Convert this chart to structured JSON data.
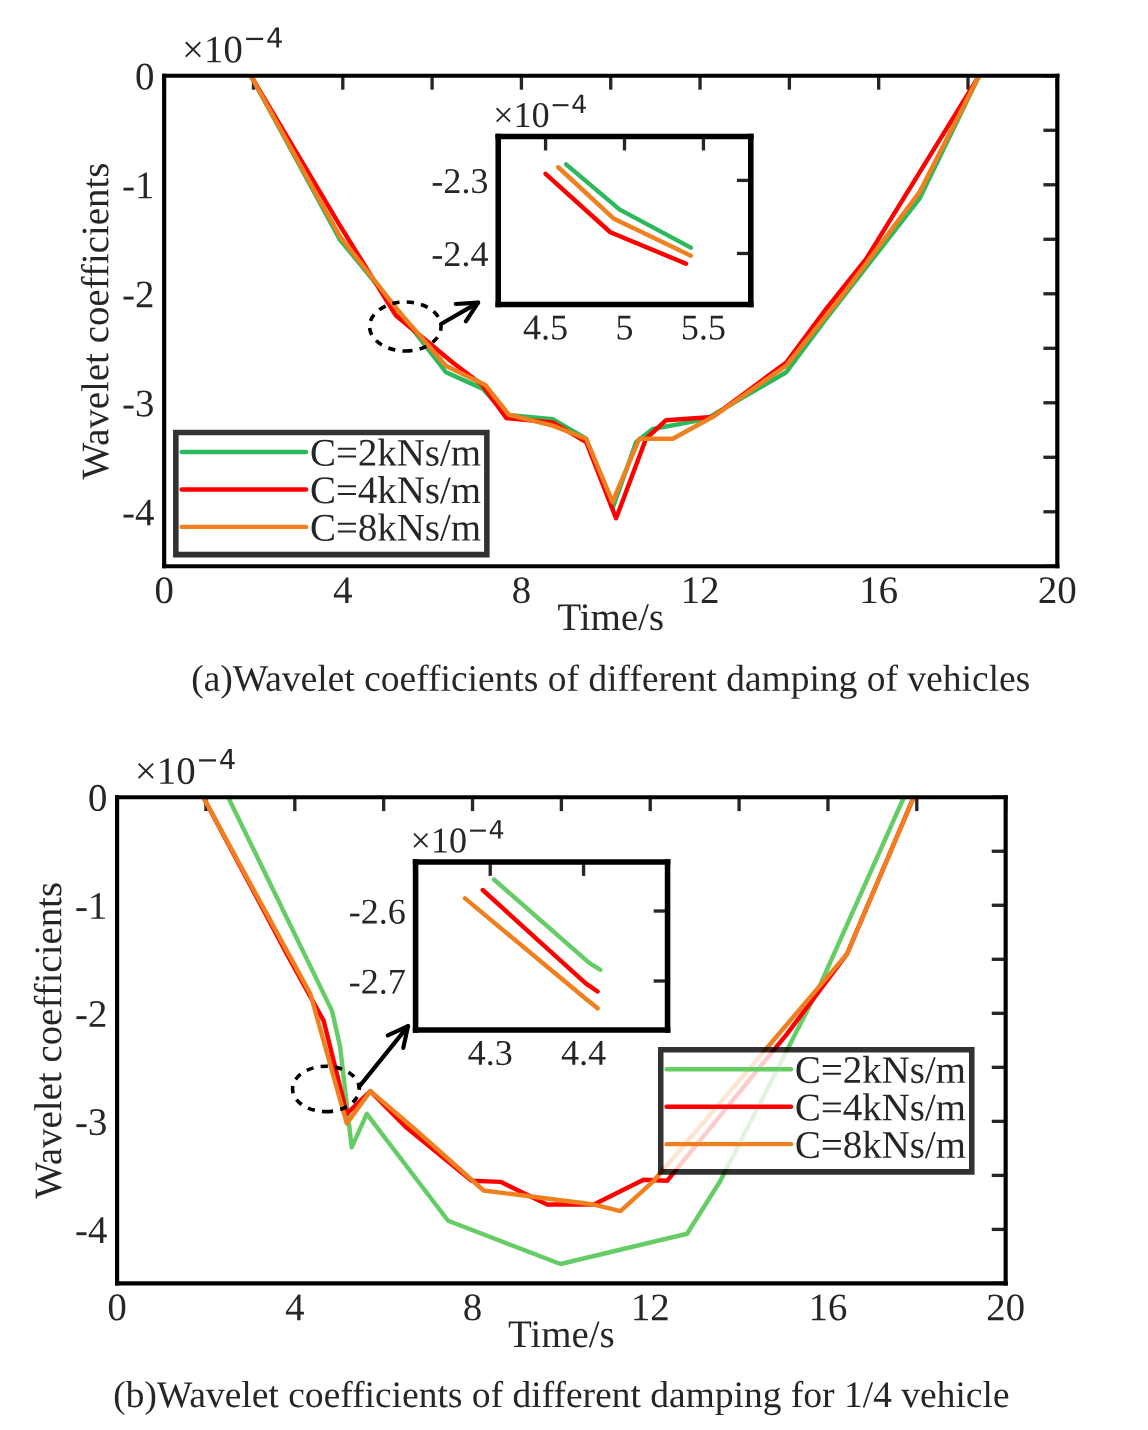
{
  "chart_data": [
    {
      "type": "line",
      "xlabel": "Time/s",
      "ylabel": "Wavelet coefficients",
      "annotations": [
        "×10$^{−4}$",
        "(a)Wavelet coefficients of different damping of vehicles"
      ],
      "xlim": [
        0,
        20
      ],
      "ylim": [
        -4.5,
        0
      ],
      "xticks": [
        0,
        {
          "value": 2,
          "label": null
        },
        4,
        {
          "value": 6,
          "label": null
        },
        8,
        {
          "value": 10,
          "label": null
        },
        12,
        {
          "value": 14,
          "label": null
        },
        16,
        {
          "value": 18,
          "label": null
        },
        20
      ],
      "yticks": [
        {
          "value": -4.5,
          "label": null
        },
        -4,
        {
          "value": -3.5,
          "label": null
        },
        -3,
        {
          "value": -2.5,
          "label": null
        },
        -2,
        {
          "value": -1.5,
          "label": null
        },
        -1,
        {
          "value": -0.5,
          "label": null
        },
        0
      ],
      "legend": "lower left",
      "grid": false,
      "line_style": "solid",
      "marker": "none",
      "series": [
        {
          "name": "C=2kNs/m",
          "color": "#2eb85c",
          "x": [
            1.94,
            3.93,
            5.27,
            6.31,
            7.13,
            7.66,
            8.7,
            9.45,
            10.04,
            10.57,
            10.94,
            12.13,
            13.93,
            14.82,
            16.91,
            18.25
          ],
          "values": [
            0,
            -1.5,
            -2.17,
            -2.72,
            -2.87,
            -3.11,
            -3.15,
            -3.33,
            -3.97,
            -3.36,
            -3.24,
            -3.15,
            -2.72,
            -2.23,
            -1.13,
            0
          ]
        },
        {
          "name": "C=4kNs/m",
          "color": "#ff0000",
          "x": [
            1.94,
            3.93,
            5.19,
            6.46,
            7.13,
            7.66,
            8.7,
            9.45,
            10.12,
            10.79,
            11.24,
            12.28,
            13.93,
            14.82,
            15.72,
            16.91,
            18.25
          ],
          "values": [
            0,
            -1.37,
            -2.2,
            -2.63,
            -2.84,
            -3.14,
            -3.18,
            -3.36,
            -4.06,
            -3.33,
            -3.16,
            -3.13,
            -2.63,
            -2.14,
            -1.68,
            -0.89,
            0
          ]
        },
        {
          "name": "C=8kNs/m",
          "color": "#f07f1f",
          "x": [
            1.94,
            3.93,
            5.27,
            6.31,
            7.2,
            7.72,
            8.7,
            9.45,
            10.04,
            10.64,
            11.39,
            12.28,
            13.93,
            15.12,
            16.91,
            18.25
          ],
          "values": [
            0,
            -1.47,
            -2.17,
            -2.66,
            -2.84,
            -3.11,
            -3.21,
            -3.33,
            -3.91,
            -3.33,
            -3.33,
            -3.13,
            -2.66,
            -2.05,
            -1.07,
            0
          ]
        }
      ]
    },
    {
      "type": "line",
      "annotations": [
        "×10$^{−4}$"
      ],
      "xlim": [
        4.2,
        5.8
      ],
      "ylim": [
        -2.47,
        -2.24
      ],
      "xticks": [
        4.5,
        5,
        5.5
      ],
      "yticks": [
        -2.4,
        -2.3
      ],
      "legend": false,
      "grid": false,
      "line_style": "solid",
      "marker": "none",
      "series": [
        {
          "color": "#2eb85c",
          "x": [
            4.63,
            4.97,
            5.42
          ],
          "values": [
            -2.278,
            -2.34,
            -2.392
          ]
        },
        {
          "color": "#ff0000",
          "x": [
            4.5,
            4.91,
            5.39
          ],
          "values": [
            -2.291,
            -2.371,
            -2.414
          ]
        },
        {
          "color": "#f07f1f",
          "x": [
            4.58,
            4.93,
            5.42
          ],
          "values": [
            -2.282,
            -2.352,
            -2.403
          ]
        }
      ]
    },
    {
      "type": "line",
      "xlabel": "Time/s",
      "ylabel": "Wavelet coefficients",
      "annotations": [
        "×10$^{−4}$",
        "(b)Wavelet coefficients of different damping for 1/4 vehicle"
      ],
      "xlim": [
        0,
        20
      ],
      "ylim": [
        -4.5,
        0
      ],
      "xticks": [
        0,
        {
          "value": 2,
          "label": null
        },
        4,
        {
          "value": 6,
          "label": null
        },
        8,
        {
          "value": 10,
          "label": null
        },
        12,
        {
          "value": 14,
          "label": null
        },
        16,
        {
          "value": 18,
          "label": null
        },
        20
      ],
      "yticks": [
        {
          "value": -4.5,
          "label": null
        },
        -4,
        {
          "value": -3.5,
          "label": null
        },
        -3,
        {
          "value": -2.5,
          "label": null
        },
        -2,
        {
          "value": -1.5,
          "label": null
        },
        -1,
        {
          "value": -0.5,
          "label": null
        },
        0
      ],
      "legend": "right",
      "grid": false,
      "line_style": "solid",
      "marker": "none",
      "series": [
        {
          "name": "C=2kNs/m",
          "color": "#66cc66",
          "x": [
            2.5,
            4.84,
            5.02,
            5.28,
            5.62,
            7.45,
            9.98,
            12.83,
            13.58,
            15.8,
            17.71
          ],
          "values": [
            0,
            -1.98,
            -2.31,
            -3.24,
            -2.93,
            -3.92,
            -4.32,
            -4.04,
            -3.55,
            -1.76,
            0
          ]
        },
        {
          "name": "C=4kNs/m",
          "color": "#ff0000",
          "x": [
            1.94,
            3.82,
            4.65,
            5.17,
            5.7,
            6.52,
            7.98,
            8.63,
            9.68,
            10.73,
            11.85,
            12.38,
            15.08,
            16.43,
            17.93
          ],
          "values": [
            0,
            -1.45,
            -2.07,
            -2.93,
            -2.72,
            -3.06,
            -3.55,
            -3.56,
            -3.77,
            -3.77,
            -3.54,
            -3.55,
            -2.19,
            -1.45,
            0
          ]
        },
        {
          "name": "C=8kNs/m",
          "color": "#f07f1f",
          "x": [
            1.94,
            4.35,
            5.17,
            5.7,
            6.67,
            8.25,
            10.73,
            11.33,
            12.08,
            16.43,
            17.93
          ],
          "values": [
            0,
            -1.82,
            -3.02,
            -2.72,
            -3.06,
            -3.64,
            -3.77,
            -3.83,
            -3.55,
            -1.45,
            0
          ]
        }
      ]
    },
    {
      "type": "line",
      "annotations": [
        "×10$^{−4}$"
      ],
      "xlim": [
        4.22,
        4.49
      ],
      "ylim": [
        -2.77,
        -2.53
      ],
      "xticks": [
        4.3,
        4.4
      ],
      "yticks": [
        -2.7,
        -2.6
      ],
      "legend": false,
      "grid": false,
      "line_style": "solid",
      "marker": "none",
      "series": [
        {
          "color": "#66cc66",
          "x": [
            4.304,
            4.406,
            4.418
          ],
          "values": [
            -2.555,
            -2.674,
            -2.684
          ]
        },
        {
          "color": "#ff0000",
          "x": [
            4.292,
            4.402,
            4.415
          ],
          "values": [
            -2.57,
            -2.703,
            -2.715
          ]
        },
        {
          "color": "#f07f1f",
          "x": [
            4.273,
            4.402,
            4.415
          ],
          "values": [
            -2.582,
            -2.725,
            -2.739
          ]
        }
      ]
    }
  ]
}
